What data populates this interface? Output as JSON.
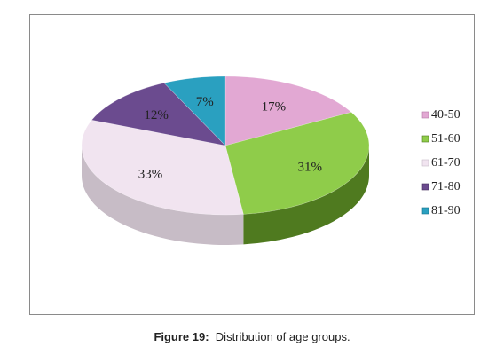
{
  "chart_data": {
    "type": "pie",
    "style": "3d",
    "title": "",
    "categories": [
      "40-50",
      "51-60",
      "61-70",
      "71-80",
      "81-90"
    ],
    "values": [
      17,
      31,
      33,
      12,
      7
    ],
    "labels": [
      "17%",
      "31%",
      "33%",
      "12%",
      "7%"
    ],
    "colors": [
      "#e2a8d3",
      "#8fcc4a",
      "#f1e4f0",
      "#6b4b8f",
      "#2aa0c0"
    ],
    "side_colors": [
      "#b27aa6",
      "#4f7a1f",
      "#c7bcc6",
      "#45305e",
      "#16708a"
    ],
    "legend_position": "right"
  },
  "caption": {
    "figure": "Figure 19:",
    "text": "Distribution of age groups."
  }
}
